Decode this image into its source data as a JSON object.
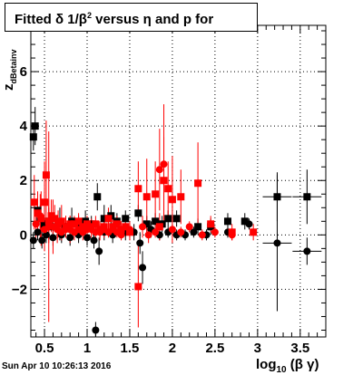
{
  "title": {
    "prefix": "Fitted ",
    "delta": "δ",
    "one_over": " 1/",
    "beta": "β",
    "sup": "2",
    "suffix": " versus η and p for"
  },
  "footer": "Sun Apr 10 10:26:13 2016",
  "colors": {
    "black_series": "#000000",
    "red_series": "#ff0000",
    "grid": "#000000"
  },
  "chart_data": {
    "type": "scatter",
    "title": "Fitted δ 1/β² versus η and p for",
    "xlabel": "log_10 (β γ)",
    "ylabel": "z_dBetainv",
    "xlim": [
      0.34,
      3.8
    ],
    "ylim": [
      -3.75,
      7.7
    ],
    "grid": true,
    "x_ticks": [
      0.5,
      1,
      1.5,
      2,
      2.5,
      3,
      3.5
    ],
    "x_tick_labels": [
      "0.5",
      "1",
      "1.5",
      "2",
      "2.5",
      "3",
      "3.5"
    ],
    "y_ticks": [
      -2,
      0,
      2,
      4,
      6
    ],
    "y_tick_labels": [
      "−2",
      "0",
      "2",
      "4",
      "6"
    ],
    "series": [
      {
        "marker": "square",
        "color": "#000000",
        "points": [
          [
            0.37,
            3.6,
            0.5
          ],
          [
            0.39,
            4.0,
            0.7
          ],
          [
            0.42,
            0.9,
            0.4
          ],
          [
            0.45,
            0.6,
            0.5
          ],
          [
            0.5,
            0.4,
            0.6
          ],
          [
            0.55,
            0.5,
            0.5
          ],
          [
            0.6,
            0.3,
            0.5
          ],
          [
            0.68,
            0.4,
            0.6
          ],
          [
            0.75,
            0.3,
            0.4
          ],
          [
            0.82,
            0.5,
            0.5
          ],
          [
            0.9,
            0.4,
            0.3
          ],
          [
            0.98,
            0.5,
            0.4
          ],
          [
            1.05,
            0.4,
            0.3
          ],
          [
            1.12,
            1.4,
            0.5
          ],
          [
            1.2,
            0.6,
            0.5
          ],
          [
            1.28,
            0.7,
            0.4
          ],
          [
            1.35,
            0.5,
            0.3
          ],
          [
            1.45,
            0.6,
            0.3
          ],
          [
            1.6,
            0.8,
            0.3
          ],
          [
            1.7,
            0.4,
            0.3
          ],
          [
            1.8,
            0.5,
            0.3
          ],
          [
            1.88,
            0.4,
            0.3
          ],
          [
            1.95,
            0.6,
            0.3
          ],
          [
            2.05,
            0.6,
            0.3
          ],
          [
            2.3,
            0.3,
            0.3
          ],
          [
            2.45,
            0.3,
            0.3
          ],
          [
            2.65,
            0.5,
            0.3
          ],
          [
            2.85,
            0.5,
            0.3
          ],
          [
            3.23,
            1.4,
            0.9
          ],
          [
            3.58,
            1.4,
            1.0
          ]
        ]
      },
      {
        "marker": "circle",
        "color": "#000000",
        "points": [
          [
            0.37,
            -0.2,
            0.3
          ],
          [
            0.42,
            0.1,
            0.3
          ],
          [
            0.47,
            -0.2,
            0.3
          ],
          [
            0.52,
            0.0,
            0.3
          ],
          [
            0.6,
            -0.1,
            0.3
          ],
          [
            0.7,
            0.0,
            0.3
          ],
          [
            0.8,
            -0.1,
            0.3
          ],
          [
            0.9,
            0.0,
            0.3
          ],
          [
            1.0,
            -0.1,
            0.3
          ],
          [
            1.08,
            -0.2,
            0.3
          ],
          [
            1.14,
            -0.6,
            0.5
          ],
          [
            1.2,
            0.1,
            0.3
          ],
          [
            1.3,
            0.0,
            0.3
          ],
          [
            1.45,
            0.1,
            0.3
          ],
          [
            1.55,
            0.1,
            0.3
          ],
          [
            1.62,
            -0.3,
            0.4
          ],
          [
            1.65,
            -1.2,
            0.6
          ],
          [
            1.75,
            0.2,
            0.3
          ],
          [
            1.85,
            0.0,
            0.2
          ],
          [
            1.95,
            0.1,
            0.2
          ],
          [
            2.05,
            0.0,
            0.2
          ],
          [
            2.15,
            0.0,
            0.2
          ],
          [
            2.25,
            0.1,
            0.2
          ],
          [
            2.4,
            0.0,
            0.2
          ],
          [
            2.65,
            0.1,
            0.2
          ],
          [
            2.9,
            0.4,
            0.2
          ],
          [
            3.23,
            -0.3,
            2.5
          ],
          [
            3.58,
            -0.6,
            0.5
          ],
          [
            1.1,
            -3.5,
            0.3
          ]
        ]
      },
      {
        "marker": "square",
        "color": "#ff0000",
        "points": [
          [
            0.38,
            1.2,
            1.0
          ],
          [
            0.42,
            0.8,
            0.8
          ],
          [
            0.46,
            0.6,
            1.0
          ],
          [
            0.5,
            1.2,
            1.5
          ],
          [
            0.52,
            2.2,
            2.0
          ],
          [
            0.55,
            0.5,
            0.8
          ],
          [
            0.58,
            0.7,
            0.6
          ],
          [
            0.62,
            0.6,
            0.5
          ],
          [
            0.66,
            0.4,
            0.5
          ],
          [
            0.7,
            0.5,
            0.6
          ],
          [
            0.75,
            0.3,
            0.4
          ],
          [
            0.8,
            0.4,
            0.3
          ],
          [
            0.85,
            0.4,
            0.3
          ],
          [
            0.9,
            0.5,
            0.3
          ],
          [
            0.95,
            0.3,
            0.3
          ],
          [
            1.0,
            0.4,
            0.3
          ],
          [
            1.05,
            0.3,
            0.3
          ],
          [
            1.1,
            0.4,
            0.3
          ],
          [
            1.15,
            0.2,
            0.3
          ],
          [
            1.2,
            0.3,
            0.3
          ],
          [
            1.25,
            0.6,
            0.4
          ],
          [
            1.3,
            0.3,
            0.3
          ],
          [
            1.35,
            0.4,
            0.3
          ],
          [
            1.4,
            0.2,
            0.3
          ],
          [
            1.45,
            0.3,
            0.3
          ],
          [
            1.5,
            0.1,
            0.3
          ],
          [
            1.6,
            1.7,
            1.0
          ],
          [
            1.6,
            -1.9,
            1.5
          ],
          [
            1.7,
            1.4,
            1.4
          ],
          [
            1.8,
            1.5,
            1.2
          ],
          [
            1.85,
            0.3,
            0.5
          ],
          [
            1.9,
            2.0,
            1.6
          ],
          [
            1.95,
            1.7,
            1.0
          ],
          [
            2.0,
            1.3,
            1.6
          ],
          [
            2.1,
            1.4,
            1.0
          ],
          [
            2.3,
            1.9,
            1.5
          ],
          [
            2.45,
            0.4,
            0.3
          ],
          [
            2.7,
            0.1,
            0.3
          ],
          [
            2.95,
            0.1,
            0.3
          ]
        ]
      },
      {
        "marker": "circle",
        "color": "#ff0000",
        "points": [
          [
            0.4,
            0.4,
            0.5
          ],
          [
            0.45,
            0.7,
            0.8
          ],
          [
            0.5,
            0.2,
            0.8
          ],
          [
            0.55,
            0.3,
            3.5
          ],
          [
            0.6,
            0.3,
            1.0
          ],
          [
            0.65,
            0.2,
            0.5
          ],
          [
            0.7,
            0.1,
            0.3
          ],
          [
            0.75,
            0.2,
            0.3
          ],
          [
            0.8,
            0.2,
            0.5
          ],
          [
            0.85,
            0.1,
            0.3
          ],
          [
            0.9,
            0.2,
            0.3
          ],
          [
            0.95,
            0.1,
            0.3
          ],
          [
            1.0,
            0.2,
            0.3
          ],
          [
            1.05,
            0.2,
            0.3
          ],
          [
            1.1,
            0.1,
            0.3
          ],
          [
            1.15,
            0.1,
            0.3
          ],
          [
            1.2,
            0.2,
            0.3
          ],
          [
            1.25,
            0.1,
            0.2
          ],
          [
            1.3,
            0.2,
            0.2
          ],
          [
            1.35,
            0.1,
            0.2
          ],
          [
            1.4,
            0.0,
            0.2
          ],
          [
            1.5,
            0.2,
            0.3
          ],
          [
            1.65,
            0.3,
            0.4
          ],
          [
            1.72,
            0.0,
            0.3
          ],
          [
            1.8,
            0.1,
            0.2
          ],
          [
            1.85,
            2.4,
            1.5
          ],
          [
            1.9,
            2.6,
            2.2
          ],
          [
            2.0,
            0.2,
            0.2
          ],
          [
            2.1,
            0.1,
            0.2
          ],
          [
            2.2,
            0.3,
            0.2
          ],
          [
            2.35,
            0.0,
            0.2
          ],
          [
            2.5,
            0.1,
            0.2
          ],
          [
            2.7,
            0.0,
            0.2
          ]
        ]
      }
    ]
  }
}
